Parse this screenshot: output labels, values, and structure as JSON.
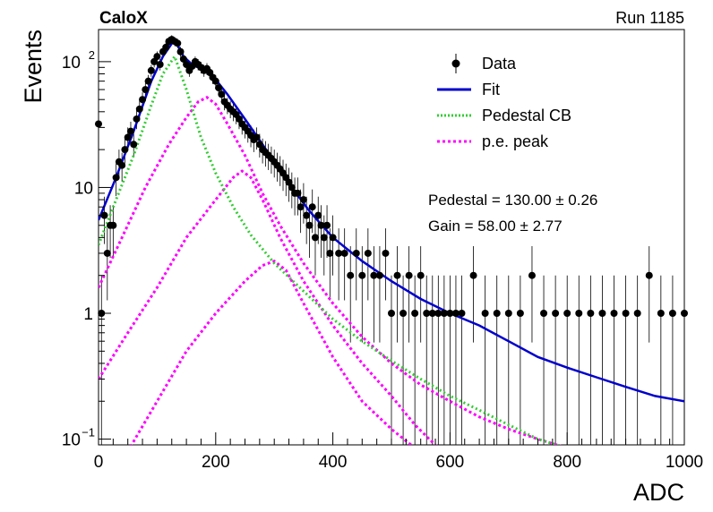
{
  "header": {
    "left_label": "CaloX",
    "right_label": "Run 1185"
  },
  "chart_data": {
    "type": "scatter",
    "xlabel": "ADC",
    "ylabel": "Events",
    "xlim": [
      0,
      1000
    ],
    "ylim": [
      0.09,
      180
    ],
    "y_scale": "log",
    "grid": false,
    "legend_position": "top-right",
    "x_ticks": [
      "0",
      "200",
      "400",
      "600",
      "800",
      "1000"
    ],
    "y_ticks": [
      {
        "value": 0.1,
        "label": "10",
        "exp": "−1"
      },
      {
        "value": 1,
        "label": "1",
        "exp": ""
      },
      {
        "value": 10,
        "label": "10",
        "exp": ""
      },
      {
        "value": 100,
        "label": "10",
        "exp": "2"
      }
    ],
    "legend": [
      {
        "key": "data",
        "label": "Data",
        "color": "#000000",
        "style": "marker"
      },
      {
        "key": "fit",
        "label": "Fit",
        "color": "#0000cc",
        "style": "solid"
      },
      {
        "key": "pedestal",
        "label": "Pedestal CB",
        "color": "#33cc33",
        "style": "dotted"
      },
      {
        "key": "pe",
        "label": "p.e. peak",
        "color": "#ff00ff",
        "style": "dotted"
      }
    ],
    "annotations": [
      "Pedestal = 130.00 ± 0.26",
      "Gain = 58.00 ± 2.77"
    ],
    "data_points": [
      [
        0,
        32
      ],
      [
        5,
        1
      ],
      [
        10,
        6
      ],
      [
        15,
        3
      ],
      [
        20,
        5
      ],
      [
        25,
        5
      ],
      [
        30,
        12
      ],
      [
        35,
        16
      ],
      [
        40,
        15
      ],
      [
        45,
        20
      ],
      [
        50,
        25
      ],
      [
        55,
        28
      ],
      [
        60,
        22
      ],
      [
        65,
        35
      ],
      [
        70,
        42
      ],
      [
        75,
        50
      ],
      [
        80,
        60
      ],
      [
        85,
        70
      ],
      [
        90,
        85
      ],
      [
        95,
        100
      ],
      [
        100,
        110
      ],
      [
        105,
        95
      ],
      [
        110,
        120
      ],
      [
        115,
        130
      ],
      [
        120,
        145
      ],
      [
        125,
        150
      ],
      [
        130,
        145
      ],
      [
        135,
        140
      ],
      [
        140,
        120
      ],
      [
        145,
        105
      ],
      [
        150,
        95
      ],
      [
        155,
        85
      ],
      [
        160,
        92
      ],
      [
        165,
        100
      ],
      [
        170,
        95
      ],
      [
        175,
        90
      ],
      [
        180,
        85
      ],
      [
        185,
        88
      ],
      [
        190,
        82
      ],
      [
        195,
        75
      ],
      [
        200,
        70
      ],
      [
        205,
        62
      ],
      [
        210,
        55
      ],
      [
        215,
        48
      ],
      [
        220,
        45
      ],
      [
        225,
        42
      ],
      [
        230,
        40
      ],
      [
        235,
        38
      ],
      [
        240,
        35
      ],
      [
        245,
        32
      ],
      [
        250,
        30
      ],
      [
        255,
        28
      ],
      [
        260,
        26
      ],
      [
        265,
        24
      ],
      [
        270,
        25
      ],
      [
        275,
        22
      ],
      [
        280,
        20
      ],
      [
        285,
        19
      ],
      [
        290,
        18
      ],
      [
        295,
        17
      ],
      [
        300,
        16
      ],
      [
        305,
        15
      ],
      [
        310,
        14
      ],
      [
        315,
        13
      ],
      [
        320,
        12
      ],
      [
        325,
        11
      ],
      [
        330,
        10
      ],
      [
        335,
        9
      ],
      [
        340,
        9
      ],
      [
        345,
        7
      ],
      [
        350,
        8
      ],
      [
        355,
        6
      ],
      [
        360,
        5
      ],
      [
        365,
        7
      ],
      [
        370,
        4
      ],
      [
        375,
        6
      ],
      [
        380,
        5
      ],
      [
        385,
        4
      ],
      [
        390,
        5
      ],
      [
        395,
        3
      ],
      [
        400,
        4
      ],
      [
        410,
        3
      ],
      [
        420,
        3
      ],
      [
        430,
        2
      ],
      [
        440,
        3
      ],
      [
        450,
        2
      ],
      [
        460,
        3
      ],
      [
        470,
        2
      ],
      [
        480,
        2
      ],
      [
        490,
        3
      ],
      [
        500,
        1
      ],
      [
        510,
        2
      ],
      [
        520,
        1
      ],
      [
        530,
        2
      ],
      [
        540,
        1
      ],
      [
        550,
        2
      ],
      [
        560,
        1
      ],
      [
        570,
        1
      ],
      [
        580,
        1
      ],
      [
        590,
        1
      ],
      [
        600,
        1
      ],
      [
        610,
        1
      ],
      [
        620,
        1
      ],
      [
        640,
        2
      ],
      [
        660,
        1
      ],
      [
        680,
        1
      ],
      [
        700,
        1
      ],
      [
        720,
        1
      ],
      [
        740,
        2
      ],
      [
        760,
        1
      ],
      [
        780,
        1
      ],
      [
        800,
        1
      ],
      [
        820,
        1
      ],
      [
        840,
        1
      ],
      [
        860,
        1
      ],
      [
        880,
        1
      ],
      [
        900,
        1
      ],
      [
        920,
        1
      ],
      [
        940,
        2
      ],
      [
        960,
        1
      ],
      [
        980,
        1
      ],
      [
        1000,
        1
      ]
    ],
    "fit_curve": [
      [
        0,
        5.5
      ],
      [
        30,
        12
      ],
      [
        60,
        28
      ],
      [
        90,
        70
      ],
      [
        110,
        110
      ],
      [
        130,
        150
      ],
      [
        145,
        110
      ],
      [
        160,
        95
      ],
      [
        180,
        85
      ],
      [
        200,
        72
      ],
      [
        220,
        55
      ],
      [
        250,
        35
      ],
      [
        280,
        22
      ],
      [
        300,
        16
      ],
      [
        330,
        10
      ],
      [
        360,
        6.5
      ],
      [
        400,
        4
      ],
      [
        450,
        2.6
      ],
      [
        500,
        1.8
      ],
      [
        550,
        1.3
      ],
      [
        600,
        1.0
      ],
      [
        650,
        0.8
      ],
      [
        700,
        0.6
      ],
      [
        750,
        0.45
      ],
      [
        800,
        0.37
      ],
      [
        850,
        0.31
      ],
      [
        900,
        0.26
      ],
      [
        950,
        0.22
      ],
      [
        1000,
        0.2
      ]
    ],
    "pedestal_curve": [
      [
        0,
        3.5
      ],
      [
        30,
        8
      ],
      [
        60,
        18
      ],
      [
        90,
        45
      ],
      [
        110,
        80
      ],
      [
        130,
        110
      ],
      [
        150,
        60
      ],
      [
        175,
        25
      ],
      [
        200,
        13
      ],
      [
        230,
        7
      ],
      [
        260,
        4.2
      ],
      [
        300,
        2.5
      ],
      [
        350,
        1.5
      ],
      [
        400,
        0.9
      ],
      [
        450,
        0.6
      ],
      [
        500,
        0.42
      ],
      [
        550,
        0.3
      ],
      [
        600,
        0.22
      ],
      [
        650,
        0.17
      ],
      [
        700,
        0.13
      ],
      [
        750,
        0.1
      ],
      [
        800,
        0.085
      ]
    ],
    "pe_peaks": [
      [
        [
          0,
          1.6
        ],
        [
          40,
          4
        ],
        [
          80,
          10
        ],
        [
          120,
          22
        ],
        [
          150,
          36
        ],
        [
          170,
          48
        ],
        [
          185,
          52
        ],
        [
          200,
          46
        ],
        [
          220,
          32
        ],
        [
          250,
          18
        ],
        [
          280,
          9
        ],
        [
          310,
          5
        ],
        [
          350,
          2.5
        ],
        [
          400,
          1.2
        ],
        [
          450,
          0.65
        ],
        [
          500,
          0.4
        ],
        [
          550,
          0.27
        ],
        [
          600,
          0.2
        ],
        [
          650,
          0.15
        ],
        [
          700,
          0.12
        ],
        [
          750,
          0.1
        ],
        [
          800,
          0.085
        ]
      ],
      [
        [
          0,
          0.3
        ],
        [
          50,
          0.7
        ],
        [
          100,
          1.6
        ],
        [
          150,
          4
        ],
        [
          200,
          8
        ],
        [
          230,
          12
        ],
        [
          245,
          13.5
        ],
        [
          260,
          12
        ],
        [
          280,
          8
        ],
        [
          310,
          4
        ],
        [
          350,
          1.8
        ],
        [
          400,
          0.8
        ],
        [
          450,
          0.4
        ],
        [
          500,
          0.22
        ],
        [
          540,
          0.13
        ],
        [
          580,
          0.085
        ]
      ],
      [
        [
          50,
          0.08
        ],
        [
          100,
          0.2
        ],
        [
          150,
          0.5
        ],
        [
          200,
          1
        ],
        [
          250,
          1.8
        ],
        [
          280,
          2.4
        ],
        [
          300,
          2.6
        ],
        [
          320,
          2.2
        ],
        [
          350,
          1.2
        ],
        [
          400,
          0.45
        ],
        [
          450,
          0.2
        ],
        [
          500,
          0.12
        ],
        [
          540,
          0.085
        ]
      ]
    ]
  }
}
